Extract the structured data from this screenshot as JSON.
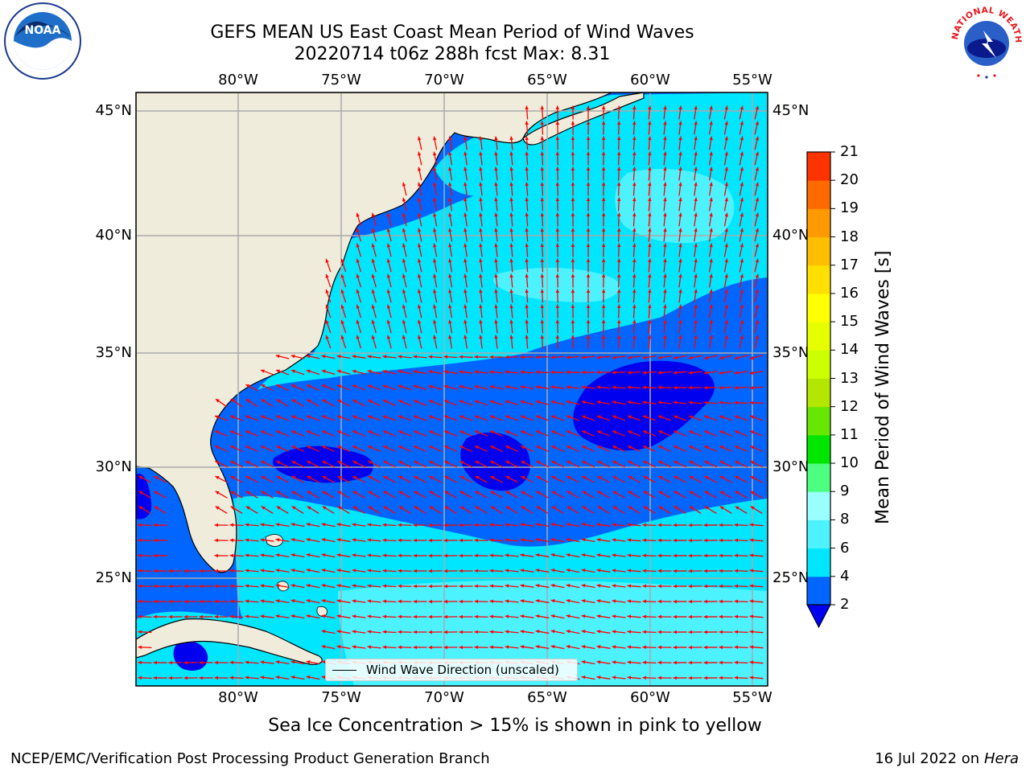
{
  "title": {
    "line1": "GEFS MEAN US East Coast Mean Period of Wind Waves",
    "line2": "20220714 t06z 288h fcst   Max: 8.31"
  },
  "logos": {
    "left": "NOAA",
    "right": "NATIONAL WEATHER SERVICE"
  },
  "map": {
    "lon_ticks": [
      "80°W",
      "75°W",
      "70°W",
      "65°W",
      "60°W",
      "55°W"
    ],
    "lat_ticks": [
      "45°N",
      "40°N",
      "35°N",
      "30°N",
      "25°N"
    ],
    "lon_range": [
      -85,
      -54.5
    ],
    "lat_range": [
      20.5,
      46
    ],
    "grid": true,
    "land_color": "#efecdc",
    "arrow_color": "#ff0000"
  },
  "legend": {
    "label": "Wind Wave Direction (unscaled)"
  },
  "colorbar": {
    "label": "Mean Period of Wind Waves [s]",
    "ticks": [
      "2",
      "4",
      "6",
      "8",
      "9",
      "10",
      "11",
      "12",
      "13",
      "14",
      "15",
      "16",
      "17",
      "18",
      "19",
      "20",
      "21"
    ],
    "colors": [
      "#0066ff",
      "#00e6ff",
      "#4df2ff",
      "#99ffff",
      "#4dff80",
      "#00e600",
      "#66e600",
      "#b3e600",
      "#ccff00",
      "#e6ff00",
      "#ffff00",
      "#ffe000",
      "#ffbf00",
      "#ff9900",
      "#ff6a00",
      "#ff3300"
    ],
    "under_color": "#0000ee"
  },
  "chart_data": {
    "type": "heatmap",
    "title": "GEFS MEAN US East Coast Mean Period of Wind Waves",
    "subtitle": "20220714 t06z 288h fcst   Max: 8.31",
    "variable": "Mean Period of Wind Waves [s]",
    "max": 8.31,
    "levels": [
      2,
      4,
      6,
      8,
      9,
      10,
      11,
      12,
      13,
      14,
      15,
      16,
      17,
      18,
      19,
      20,
      21
    ]
  },
  "note": "Sea Ice Concentration > 15% is shown in pink to yellow",
  "footer": {
    "left": "NCEP/EMC/Verification Post Processing Product Generation Branch",
    "date": "16 Jul 2022 on ",
    "machine": "Hera"
  }
}
